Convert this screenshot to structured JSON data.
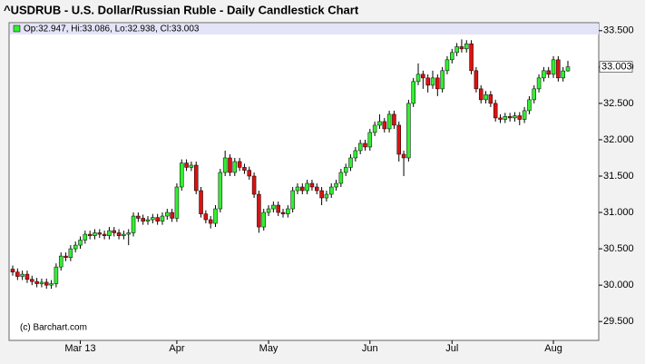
{
  "chart_data": {
    "type": "candlestick",
    "title": "^USDRUB - U.S. Dollar/Russian Ruble - Daily Candlestick Chart",
    "legend_text": "Op:32.947, Hi:33.086, Lo:32.938, Cl:33.003",
    "last_price_label": "33.003",
    "watermark": "(c) Barchart.com",
    "up_color": "#33ee33",
    "down_color": "#dd1111",
    "categories": [
      null,
      null,
      null,
      null,
      null,
      null,
      null,
      null,
      null,
      null,
      null,
      null,
      null,
      null,
      "Mar 13",
      null,
      null,
      null,
      null,
      null,
      null,
      null,
      null,
      null,
      null,
      null,
      null,
      null,
      null,
      null,
      null,
      null,
      null,
      null,
      "Apr",
      null,
      null,
      null,
      null,
      null,
      null,
      null,
      null,
      null,
      null,
      null,
      null,
      null,
      null,
      null,
      null,
      null,
      null,
      "May",
      null,
      null,
      null,
      null,
      null,
      null,
      null,
      null,
      null,
      null,
      null,
      null,
      null,
      null,
      null,
      null,
      null,
      null,
      null,
      null,
      "Jun",
      null,
      null,
      null,
      null,
      null,
      null,
      null,
      null,
      null,
      null,
      null,
      null,
      null,
      null,
      null,
      null,
      "Jul",
      null,
      null,
      null,
      null,
      null,
      null,
      null,
      null,
      null,
      null,
      null,
      null,
      null,
      null,
      null,
      null,
      null,
      null,
      null,
      null,
      "Aug",
      null,
      null,
      null
    ],
    "open": [
      30.22,
      30.18,
      30.12,
      30.15,
      30.08,
      30.05,
      30.02,
      30.04,
      30.0,
      30.02,
      30.25,
      30.4,
      30.38,
      30.5,
      30.55,
      30.62,
      30.7,
      30.68,
      30.72,
      30.7,
      30.68,
      30.75,
      30.72,
      30.68,
      30.7,
      30.72,
      30.95,
      30.92,
      30.88,
      30.9,
      30.93,
      30.88,
      30.95,
      31.0,
      30.92,
      31.35,
      31.68,
      31.62,
      31.65,
      31.3,
      30.98,
      30.9,
      30.85,
      31.05,
      31.55,
      31.75,
      31.55,
      31.7,
      31.62,
      31.58,
      31.5,
      31.25,
      30.8,
      31.0,
      31.05,
      31.1,
      31.0,
      30.98,
      31.05,
      31.3,
      31.35,
      31.3,
      31.4,
      31.35,
      31.3,
      31.2,
      31.25,
      31.35,
      31.4,
      31.55,
      31.62,
      31.75,
      31.85,
      31.95,
      31.9,
      32.1,
      32.2,
      32.25,
      32.15,
      32.35,
      32.2,
      31.8,
      31.75,
      32.5,
      32.8,
      32.9,
      32.85,
      32.75,
      32.85,
      32.7,
      32.95,
      33.1,
      33.2,
      33.28,
      33.25,
      33.32,
      32.95,
      32.7,
      32.55,
      32.62,
      32.5,
      32.3,
      32.28,
      32.32,
      32.3,
      32.33,
      32.28,
      32.4,
      32.55,
      32.7,
      32.85,
      32.95,
      32.9,
      33.1,
      32.85,
      32.947
    ],
    "high": [
      30.27,
      30.23,
      30.2,
      30.2,
      30.13,
      30.1,
      30.09,
      30.09,
      30.07,
      30.3,
      30.45,
      30.45,
      30.55,
      30.6,
      30.67,
      30.75,
      30.75,
      30.77,
      30.77,
      30.75,
      30.8,
      30.8,
      30.77,
      30.75,
      30.77,
      31.0,
      31.0,
      30.97,
      30.95,
      30.98,
      30.98,
      31.0,
      31.05,
      31.05,
      31.4,
      31.73,
      31.73,
      31.7,
      31.7,
      31.35,
      31.03,
      30.95,
      31.1,
      31.6,
      31.85,
      31.8,
      31.75,
      31.75,
      31.67,
      31.63,
      31.55,
      31.3,
      31.05,
      31.1,
      31.15,
      31.15,
      31.05,
      31.1,
      31.35,
      31.4,
      31.4,
      31.45,
      31.45,
      31.4,
      31.35,
      31.3,
      31.4,
      31.45,
      31.6,
      31.67,
      31.8,
      31.9,
      32.0,
      32.0,
      32.15,
      32.25,
      32.35,
      32.3,
      32.4,
      32.4,
      32.25,
      31.85,
      32.55,
      32.85,
      33.05,
      32.95,
      32.9,
      32.95,
      32.9,
      33.0,
      33.15,
      33.25,
      33.33,
      33.38,
      33.37,
      33.37,
      33.0,
      32.75,
      32.67,
      32.67,
      32.55,
      32.35,
      32.37,
      32.37,
      32.38,
      32.38,
      32.45,
      32.6,
      32.75,
      32.9,
      33.0,
      33.0,
      33.15,
      33.15,
      33.0,
      33.086
    ],
    "low": [
      30.13,
      30.07,
      30.07,
      30.03,
      30.0,
      29.97,
      29.97,
      29.95,
      29.95,
      29.97,
      30.2,
      30.33,
      30.33,
      30.45,
      30.5,
      30.57,
      30.63,
      30.63,
      30.65,
      30.63,
      30.63,
      30.67,
      30.63,
      30.63,
      30.55,
      30.67,
      30.87,
      30.83,
      30.83,
      30.85,
      30.83,
      30.83,
      30.9,
      30.87,
      30.87,
      31.3,
      31.57,
      31.57,
      31.25,
      30.93,
      30.85,
      30.78,
      30.8,
      31.0,
      31.5,
      31.5,
      31.5,
      31.57,
      31.53,
      31.45,
      31.2,
      30.72,
      30.75,
      30.95,
      31.0,
      30.95,
      30.93,
      30.93,
      31.0,
      31.25,
      31.25,
      31.25,
      31.3,
      31.25,
      31.1,
      31.15,
      31.2,
      31.3,
      31.35,
      31.5,
      31.57,
      31.7,
      31.8,
      31.85,
      31.85,
      32.05,
      32.15,
      32.1,
      32.1,
      32.15,
      31.7,
      31.5,
      31.7,
      32.45,
      32.75,
      32.7,
      32.65,
      32.7,
      32.6,
      32.65,
      32.9,
      33.05,
      33.15,
      33.2,
      33.2,
      32.9,
      32.65,
      32.5,
      32.5,
      32.45,
      32.25,
      32.23,
      32.23,
      32.25,
      32.25,
      32.2,
      32.23,
      32.35,
      32.5,
      32.65,
      32.8,
      32.85,
      32.85,
      32.8,
      32.8,
      32.938
    ],
    "close": [
      30.18,
      30.12,
      30.15,
      30.08,
      30.05,
      30.02,
      30.04,
      30.0,
      30.02,
      30.25,
      30.4,
      30.38,
      30.5,
      30.55,
      30.62,
      30.7,
      30.68,
      30.72,
      30.7,
      30.68,
      30.75,
      30.72,
      30.68,
      30.7,
      30.72,
      30.95,
      30.92,
      30.88,
      30.9,
      30.93,
      30.88,
      30.95,
      31.0,
      30.92,
      31.35,
      31.68,
      31.62,
      31.65,
      31.3,
      30.98,
      30.9,
      30.85,
      31.05,
      31.55,
      31.75,
      31.55,
      31.7,
      31.62,
      31.58,
      31.5,
      31.25,
      30.8,
      31.0,
      31.05,
      31.1,
      31.0,
      30.98,
      31.05,
      31.3,
      31.35,
      31.3,
      31.4,
      31.35,
      31.3,
      31.2,
      31.25,
      31.35,
      31.4,
      31.55,
      31.62,
      31.75,
      31.85,
      31.95,
      31.9,
      32.1,
      32.2,
      32.25,
      32.15,
      32.35,
      32.2,
      31.8,
      31.75,
      32.5,
      32.8,
      32.9,
      32.85,
      32.75,
      32.85,
      32.7,
      32.95,
      33.1,
      33.2,
      33.28,
      33.25,
      33.32,
      32.95,
      32.7,
      32.55,
      32.62,
      32.5,
      32.3,
      32.28,
      32.32,
      32.3,
      32.33,
      32.28,
      32.4,
      32.55,
      32.7,
      32.85,
      32.95,
      32.9,
      33.1,
      32.85,
      32.947,
      33.003
    ],
    "ylim": [
      29.24,
      33.61
    ],
    "yticks": [
      {
        "value": 29.5,
        "label": "29.500"
      },
      {
        "value": 30,
        "label": "30.000"
      },
      {
        "value": 30.5,
        "label": "30.500"
      },
      {
        "value": 31,
        "label": "31.000"
      },
      {
        "value": 31.5,
        "label": "31.500"
      },
      {
        "value": 32,
        "label": "32.000"
      },
      {
        "value": 32.5,
        "label": "32.500"
      },
      {
        "value": 33,
        "label": "33.000"
      },
      {
        "value": 33.5,
        "label": "33.500"
      }
    ]
  }
}
